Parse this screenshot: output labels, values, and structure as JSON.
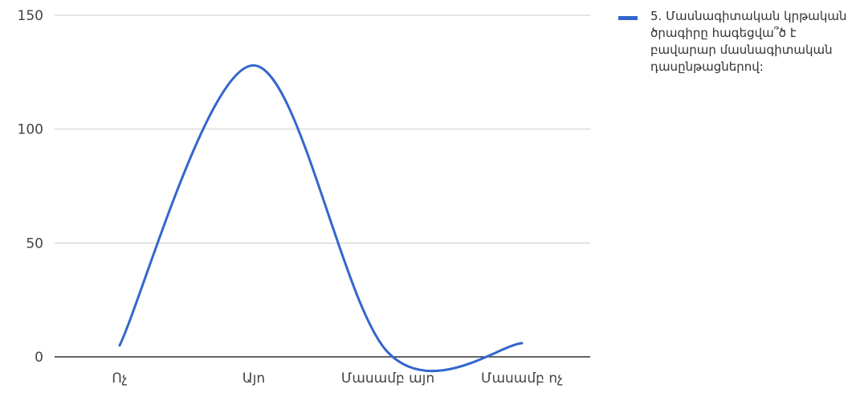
{
  "chart_data": {
    "type": "line",
    "smooth": true,
    "categories": [
      "Ոչ",
      "Այո",
      "Մասամբ այո",
      "Մասամբ ոչ"
    ],
    "series": [
      {
        "name": "5. Մասնագիտական կրթական ծրագիրը հագեցվա՞ծ է բավարար մասնագիտական դասընթացներով:",
        "values": [
          5,
          128,
          2,
          6
        ],
        "color": "#3366cc"
      }
    ],
    "title": "",
    "xlabel": "",
    "ylabel": "",
    "ylim": [
      0,
      150
    ],
    "yticks": [
      0,
      50,
      100,
      150
    ],
    "grid": true,
    "legend_position": "right"
  }
}
